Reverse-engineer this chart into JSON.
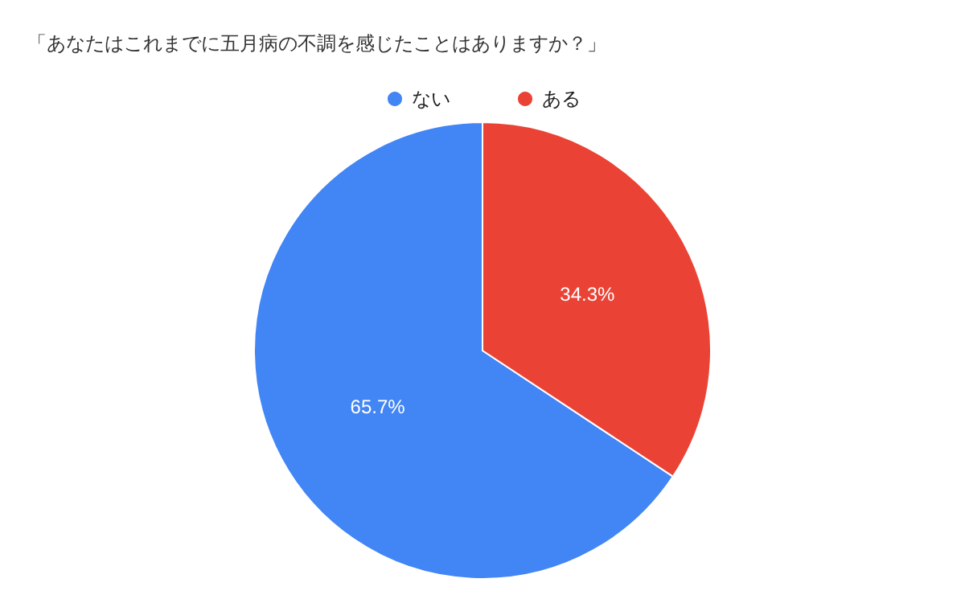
{
  "chart_data": {
    "type": "pie",
    "title": "「あなたはこれまでに五月病の不調を感じたことはありますか？」",
    "categories": [
      "ない",
      "ある"
    ],
    "values": [
      65.7,
      34.3
    ],
    "colors": [
      "#4285f4",
      "#ea4335"
    ],
    "value_labels": [
      "65.7%",
      "34.3%"
    ],
    "legend": "top"
  }
}
